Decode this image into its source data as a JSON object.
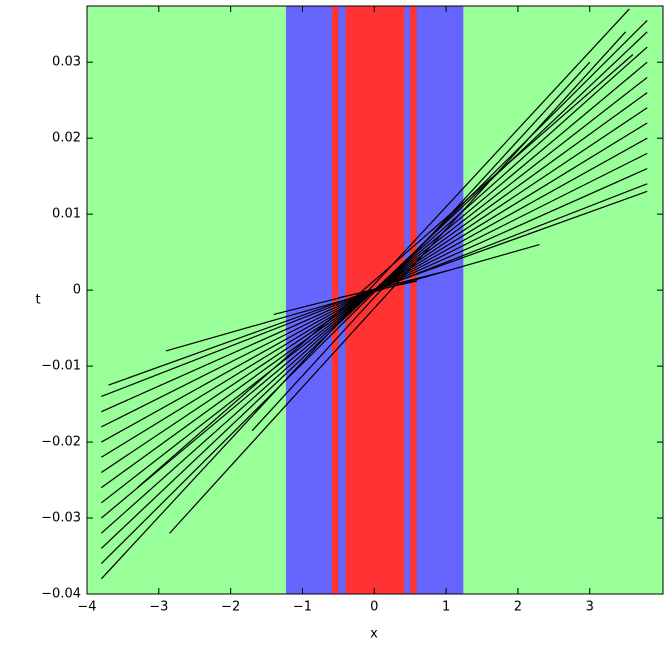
{
  "chart_data": {
    "type": "line",
    "xlabel": "x",
    "ylabel": "t",
    "xlim": [
      -4,
      4.02
    ],
    "ylim": [
      -0.04,
      0.0374
    ],
    "xticks": [
      {
        "value": -4,
        "label": "−4"
      },
      {
        "value": -3,
        "label": "−3"
      },
      {
        "value": -2,
        "label": "−2"
      },
      {
        "value": -1,
        "label": "−1"
      },
      0,
      1,
      2,
      3
    ],
    "yticks": [
      {
        "value": -0.04,
        "label": "−0.04"
      },
      {
        "value": -0.03,
        "label": "−0.03"
      },
      {
        "value": -0.02,
        "label": "−0.02"
      },
      {
        "value": -0.01,
        "label": "−0.01"
      },
      0,
      0.01,
      0.02,
      0.03
    ],
    "background": "#99ff99",
    "bands": [
      {
        "xlim": [
          -1.23,
          1.24
        ],
        "color": "#6666ff"
      },
      {
        "xlim": [
          -0.59,
          -0.5
        ],
        "color": "#ff3333"
      },
      {
        "xlim": [
          -0.4,
          0.42
        ],
        "color": "#ff3333"
      },
      {
        "xlim": [
          0.5,
          0.59
        ],
        "color": "#ff3333"
      }
    ],
    "series": [
      {
        "color": "#000000",
        "x": [
          -3.8,
          3.55
        ],
        "values": [
          -0.038,
          0.037
        ]
      },
      {
        "color": "#000000",
        "x": [
          -3.8,
          3.8
        ],
        "values": [
          -0.036,
          0.0355
        ]
      },
      {
        "color": "#000000",
        "x": [
          -3.8,
          3.8
        ],
        "values": [
          -0.034,
          0.034
        ]
      },
      {
        "color": "#000000",
        "x": [
          -3.8,
          3.8
        ],
        "values": [
          -0.032,
          0.032
        ]
      },
      {
        "color": "#000000",
        "x": [
          -3.8,
          3.8
        ],
        "values": [
          -0.03,
          0.03
        ]
      },
      {
        "color": "#000000",
        "x": [
          -3.8,
          3.8
        ],
        "values": [
          -0.028,
          0.028
        ]
      },
      {
        "color": "#000000",
        "x": [
          -3.8,
          3.8
        ],
        "values": [
          -0.026,
          0.026
        ]
      },
      {
        "color": "#000000",
        "x": [
          -3.8,
          3.8
        ],
        "values": [
          -0.024,
          0.024
        ]
      },
      {
        "color": "#000000",
        "x": [
          -3.8,
          3.8
        ],
        "values": [
          -0.022,
          0.022
        ]
      },
      {
        "color": "#000000",
        "x": [
          -3.8,
          3.8
        ],
        "values": [
          -0.02,
          0.02
        ]
      },
      {
        "color": "#000000",
        "x": [
          -3.8,
          3.8
        ],
        "values": [
          -0.018,
          0.018
        ]
      },
      {
        "color": "#000000",
        "x": [
          -3.8,
          3.8
        ],
        "values": [
          -0.016,
          0.016
        ]
      },
      {
        "color": "#000000",
        "x": [
          -3.8,
          3.8
        ],
        "values": [
          -0.014,
          0.014
        ]
      },
      {
        "color": "#000000",
        "x": [
          -3.7,
          3.8
        ],
        "values": [
          -0.0125,
          0.013
        ]
      },
      {
        "color": "#000000",
        "x": [
          -2.85,
          3.5
        ],
        "values": [
          -0.032,
          0.034
        ]
      },
      {
        "color": "#000000",
        "x": [
          -3.3,
          3.6
        ],
        "values": [
          -0.026,
          0.031
        ]
      },
      {
        "color": "#000000",
        "x": [
          -1.7,
          3.0
        ],
        "values": [
          -0.0185,
          0.03
        ]
      },
      {
        "color": "#000000",
        "x": [
          -2.9,
          2.3
        ],
        "values": [
          -0.008,
          0.006
        ]
      },
      {
        "color": "#000000",
        "x": [
          -1.4,
          1.0
        ],
        "values": [
          -0.0032,
          0.0025
        ]
      },
      {
        "color": "#000000",
        "x": [
          -0.5,
          0.6
        ],
        "values": [
          -0.001,
          0.0012
        ]
      }
    ]
  }
}
